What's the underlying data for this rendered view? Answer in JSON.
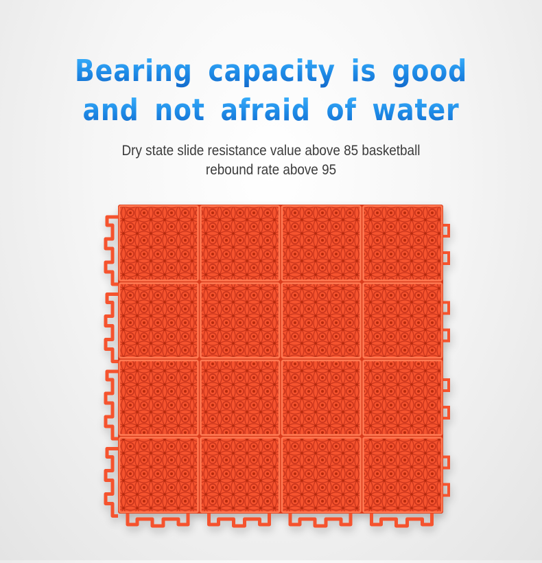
{
  "headline": {
    "line1": "Bearing capacity is good",
    "line2": "and not afraid of water"
  },
  "subtitle": {
    "line1": "Dry state slide resistance value above 85 basketball",
    "line2": "rebound rate above 95"
  },
  "product": {
    "name": "orange-interlocking-floor-tile",
    "grid_rows": 4,
    "grid_cols": 4,
    "colors": {
      "tile": "#f5522e",
      "tile_dark": "#d93a1a",
      "tile_light": "#ff7a52",
      "hole": "#c2300f"
    }
  }
}
